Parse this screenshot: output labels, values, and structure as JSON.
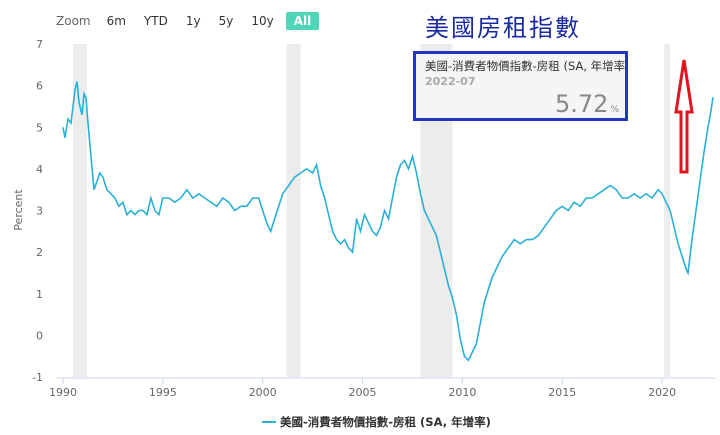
{
  "zoom": {
    "label": "Zoom",
    "buttons": [
      "6m",
      "YTD",
      "1y",
      "5y",
      "10y",
      "All"
    ],
    "active": "All"
  },
  "annotation_title": "美國房租指數",
  "tooltip": {
    "series": "美國-消費者物價指數-房租 (SA, 年增率",
    "date": "2022-07",
    "value": "5.72",
    "unit": "%"
  },
  "colors": {
    "line": "#2ab0d6",
    "recession": "#ececec",
    "arrow": "#e0141e",
    "tooltip_border": "#2236c4",
    "title": "#1a2ba0"
  },
  "chart_data": {
    "type": "line",
    "title": "",
    "xlabel": "",
    "ylabel": "Percent",
    "ylim": [
      -1,
      7
    ],
    "y_ticks": [
      -1,
      0,
      1,
      2,
      3,
      4,
      5,
      6,
      7
    ],
    "x_ticks": [
      1990,
      1995,
      2000,
      2005,
      2010,
      2015,
      2020
    ],
    "grid": false,
    "legend": "bottom-center",
    "recessions": [
      [
        1990.5,
        1991.2
      ],
      [
        2001.2,
        2001.9
      ],
      [
        2007.9,
        2009.5
      ],
      [
        2020.1,
        2020.4
      ]
    ],
    "series": [
      {
        "name": "美國-消費者物價指數-房租 (SA, 年增率)",
        "points": [
          [
            1990.0,
            5.0
          ],
          [
            1990.1,
            4.75
          ],
          [
            1990.25,
            5.2
          ],
          [
            1990.4,
            5.1
          ],
          [
            1990.5,
            5.5
          ],
          [
            1990.6,
            5.9
          ],
          [
            1990.7,
            6.1
          ],
          [
            1990.8,
            5.6
          ],
          [
            1990.95,
            5.3
          ],
          [
            1991.05,
            5.8
          ],
          [
            1991.15,
            5.7
          ],
          [
            1991.25,
            5.1
          ],
          [
            1991.4,
            4.3
          ],
          [
            1991.55,
            3.5
          ],
          [
            1991.7,
            3.7
          ],
          [
            1991.85,
            3.9
          ],
          [
            1992.0,
            3.8
          ],
          [
            1992.2,
            3.5
          ],
          [
            1992.4,
            3.4
          ],
          [
            1992.6,
            3.3
          ],
          [
            1992.8,
            3.1
          ],
          [
            1993.0,
            3.2
          ],
          [
            1993.2,
            2.9
          ],
          [
            1993.4,
            3.0
          ],
          [
            1993.6,
            2.9
          ],
          [
            1993.8,
            3.0
          ],
          [
            1994.0,
            3.0
          ],
          [
            1994.2,
            2.9
          ],
          [
            1994.4,
            3.3
          ],
          [
            1994.6,
            3.0
          ],
          [
            1994.8,
            2.9
          ],
          [
            1995.0,
            3.3
          ],
          [
            1995.3,
            3.3
          ],
          [
            1995.6,
            3.2
          ],
          [
            1995.9,
            3.3
          ],
          [
            1996.2,
            3.5
          ],
          [
            1996.5,
            3.3
          ],
          [
            1996.8,
            3.4
          ],
          [
            1997.1,
            3.3
          ],
          [
            1997.4,
            3.2
          ],
          [
            1997.7,
            3.1
          ],
          [
            1998.0,
            3.3
          ],
          [
            1998.3,
            3.2
          ],
          [
            1998.6,
            3.0
          ],
          [
            1998.9,
            3.1
          ],
          [
            1999.2,
            3.1
          ],
          [
            1999.5,
            3.3
          ],
          [
            1999.8,
            3.3
          ],
          [
            2000.0,
            3.0
          ],
          [
            2000.2,
            2.7
          ],
          [
            2000.4,
            2.5
          ],
          [
            2000.6,
            2.8
          ],
          [
            2000.8,
            3.1
          ],
          [
            2001.0,
            3.4
          ],
          [
            2001.3,
            3.6
          ],
          [
            2001.6,
            3.8
          ],
          [
            2001.9,
            3.9
          ],
          [
            2002.2,
            4.0
          ],
          [
            2002.5,
            3.9
          ],
          [
            2002.7,
            4.1
          ],
          [
            2002.9,
            3.6
          ],
          [
            2003.1,
            3.3
          ],
          [
            2003.3,
            2.9
          ],
          [
            2003.5,
            2.5
          ],
          [
            2003.7,
            2.3
          ],
          [
            2003.9,
            2.2
          ],
          [
            2004.1,
            2.3
          ],
          [
            2004.3,
            2.1
          ],
          [
            2004.5,
            2.0
          ],
          [
            2004.7,
            2.8
          ],
          [
            2004.9,
            2.5
          ],
          [
            2005.1,
            2.9
          ],
          [
            2005.3,
            2.7
          ],
          [
            2005.5,
            2.5
          ],
          [
            2005.7,
            2.4
          ],
          [
            2005.9,
            2.6
          ],
          [
            2006.1,
            3.0
          ],
          [
            2006.3,
            2.8
          ],
          [
            2006.5,
            3.3
          ],
          [
            2006.7,
            3.8
          ],
          [
            2006.9,
            4.1
          ],
          [
            2007.1,
            4.2
          ],
          [
            2007.3,
            4.0
          ],
          [
            2007.5,
            4.3
          ],
          [
            2007.7,
            3.9
          ],
          [
            2007.9,
            3.4
          ],
          [
            2008.1,
            3.0
          ],
          [
            2008.3,
            2.8
          ],
          [
            2008.5,
            2.6
          ],
          [
            2008.7,
            2.4
          ],
          [
            2008.9,
            2.0
          ],
          [
            2009.1,
            1.6
          ],
          [
            2009.3,
            1.2
          ],
          [
            2009.5,
            0.9
          ],
          [
            2009.7,
            0.5
          ],
          [
            2009.9,
            -0.1
          ],
          [
            2010.1,
            -0.5
          ],
          [
            2010.3,
            -0.6
          ],
          [
            2010.5,
            -0.4
          ],
          [
            2010.7,
            -0.2
          ],
          [
            2010.9,
            0.3
          ],
          [
            2011.1,
            0.8
          ],
          [
            2011.3,
            1.1
          ],
          [
            2011.5,
            1.4
          ],
          [
            2011.8,
            1.7
          ],
          [
            2012.0,
            1.9
          ],
          [
            2012.3,
            2.1
          ],
          [
            2012.6,
            2.3
          ],
          [
            2012.9,
            2.2
          ],
          [
            2013.2,
            2.3
          ],
          [
            2013.5,
            2.3
          ],
          [
            2013.8,
            2.4
          ],
          [
            2014.1,
            2.6
          ],
          [
            2014.4,
            2.8
          ],
          [
            2014.7,
            3.0
          ],
          [
            2015.0,
            3.1
          ],
          [
            2015.3,
            3.0
          ],
          [
            2015.6,
            3.2
          ],
          [
            2015.9,
            3.1
          ],
          [
            2016.2,
            3.3
          ],
          [
            2016.5,
            3.3
          ],
          [
            2016.8,
            3.4
          ],
          [
            2017.1,
            3.5
          ],
          [
            2017.4,
            3.6
          ],
          [
            2017.7,
            3.5
          ],
          [
            2018.0,
            3.3
          ],
          [
            2018.3,
            3.3
          ],
          [
            2018.6,
            3.4
          ],
          [
            2018.9,
            3.3
          ],
          [
            2019.2,
            3.4
          ],
          [
            2019.5,
            3.3
          ],
          [
            2019.8,
            3.5
          ],
          [
            2020.0,
            3.4
          ],
          [
            2020.2,
            3.2
          ],
          [
            2020.4,
            3.0
          ],
          [
            2020.6,
            2.6
          ],
          [
            2020.8,
            2.2
          ],
          [
            2021.0,
            1.9
          ],
          [
            2021.2,
            1.6
          ],
          [
            2021.3,
            1.5
          ],
          [
            2021.5,
            2.3
          ],
          [
            2021.7,
            3.0
          ],
          [
            2021.9,
            3.7
          ],
          [
            2022.1,
            4.4
          ],
          [
            2022.3,
            5.0
          ],
          [
            2022.45,
            5.4
          ],
          [
            2022.55,
            5.72
          ]
        ]
      }
    ]
  }
}
